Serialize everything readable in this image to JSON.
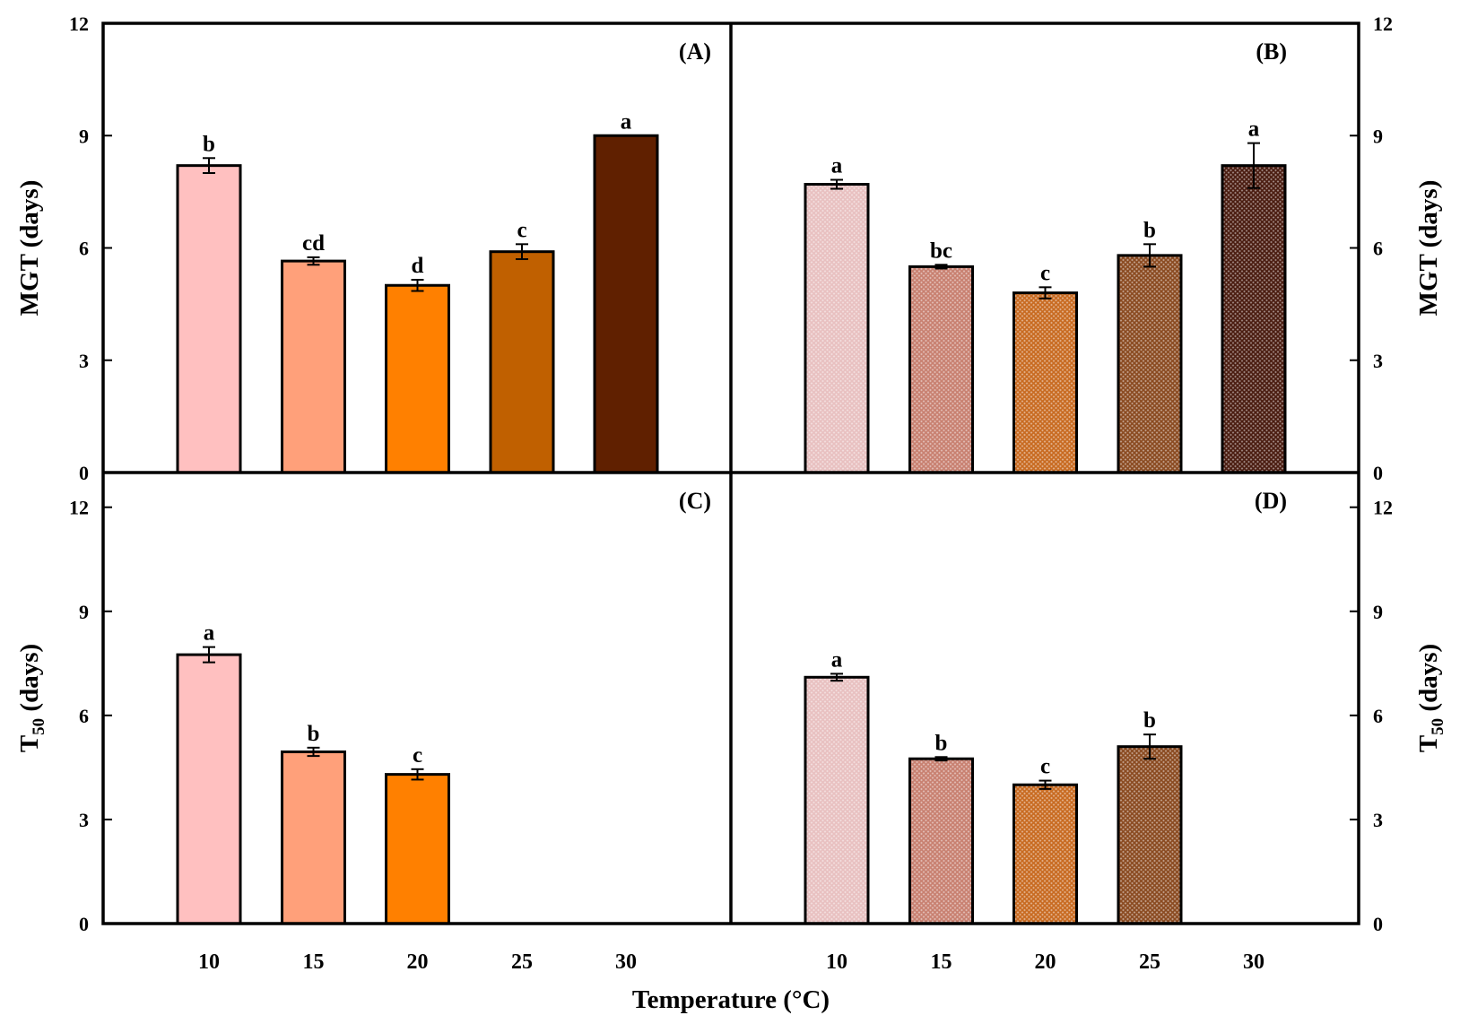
{
  "chart_data": [
    {
      "panel": "(A)",
      "type": "bar",
      "categories": [
        "10",
        "15",
        "20",
        "25",
        "30"
      ],
      "values": [
        8.2,
        5.65,
        5.0,
        5.9,
        9.0
      ],
      "errors": [
        0.2,
        0.1,
        0.15,
        0.2,
        0.0
      ],
      "letters": [
        "b",
        "cd",
        "d",
        "c",
        "a"
      ],
      "colors": [
        "#ffc0c0",
        "#ffa07a",
        "#ff8000",
        "#c06000",
        "#602000"
      ],
      "pattern": "solid",
      "ylabel": "MGT (days)",
      "ylabel_side": "left",
      "ylim": [
        0,
        12
      ],
      "yticks": [
        0,
        3,
        6,
        9,
        12
      ]
    },
    {
      "panel": "(B)",
      "type": "bar",
      "categories": [
        "10",
        "15",
        "20",
        "25",
        "30"
      ],
      "values": [
        7.7,
        5.5,
        4.8,
        5.8,
        8.2
      ],
      "errors": [
        0.12,
        0.05,
        0.15,
        0.3,
        0.6
      ],
      "letters": [
        "a",
        "bc",
        "c",
        "b",
        "a"
      ],
      "colors": [
        "#e8c0c0",
        "#c88070",
        "#c86a20",
        "#8a4a20",
        "#4a1c10"
      ],
      "pattern": "crosshatch",
      "ylabel": "MGT (days)",
      "ylabel_side": "right",
      "ylim": [
        0,
        12
      ],
      "yticks": [
        0,
        3,
        6,
        9,
        12
      ]
    },
    {
      "panel": "(C)",
      "type": "bar",
      "categories": [
        "10",
        "15",
        "20",
        "25",
        "30"
      ],
      "values": [
        7.75,
        4.95,
        4.3,
        null,
        null
      ],
      "errors": [
        0.22,
        0.12,
        0.15,
        null,
        null
      ],
      "letters": [
        "a",
        "b",
        "c",
        "",
        ""
      ],
      "colors": [
        "#ffc0c0",
        "#ffa07a",
        "#ff8000",
        "#c06000",
        "#602000"
      ],
      "pattern": "solid",
      "ylabel": "T",
      "ylabel_sub": "50",
      "ylabel_unit": " (days)",
      "ylabel_side": "left",
      "ylim": [
        0,
        13
      ],
      "yticks": [
        0,
        3,
        6,
        9,
        12
      ]
    },
    {
      "panel": "(D)",
      "type": "bar",
      "categories": [
        "10",
        "15",
        "20",
        "25",
        "30"
      ],
      "values": [
        7.1,
        4.75,
        4.0,
        5.1,
        null
      ],
      "errors": [
        0.1,
        0.05,
        0.12,
        0.35,
        null
      ],
      "letters": [
        "a",
        "b",
        "c",
        "b",
        ""
      ],
      "colors": [
        "#e8c0c0",
        "#c88070",
        "#c86a20",
        "#8a4a20",
        "#4a1c10"
      ],
      "pattern": "crosshatch",
      "ylabel": "T",
      "ylabel_sub": "50",
      "ylabel_unit": " (days)",
      "ylabel_side": "right",
      "ylim": [
        0,
        13
      ],
      "yticks": [
        0,
        3,
        6,
        9,
        12
      ]
    }
  ],
  "xlabel": "Temperature (°C)"
}
